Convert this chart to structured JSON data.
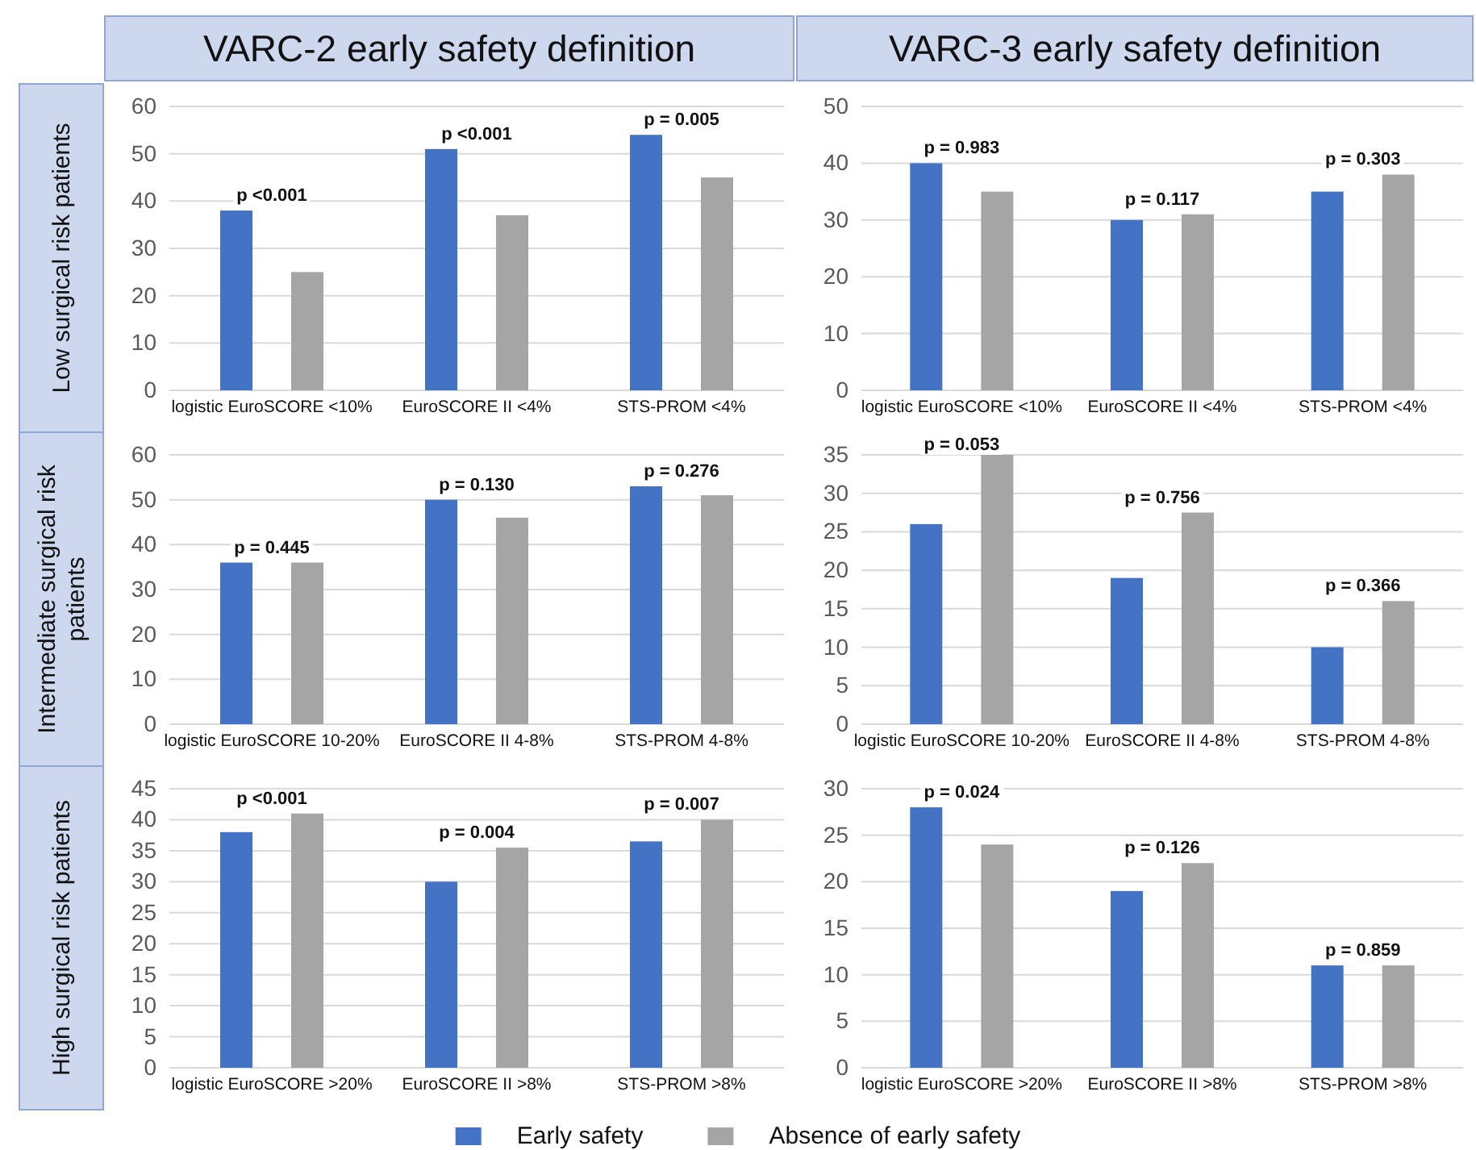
{
  "chart_data": [
    {
      "type": "bar",
      "title": "VARC-2 early safety definition",
      "ylabel": "Low surgical risk patients",
      "categories": [
        "logistic EuroSCORE <10%",
        "EuroSCORE II <4%",
        "STS-PROM <4%"
      ],
      "series": [
        {
          "color": "#4472c4",
          "values": [
            38,
            51,
            54
          ]
        },
        {
          "color": "#a5a5a5",
          "values": [
            25,
            37,
            45
          ]
        }
      ],
      "ylim": [
        0,
        60
      ],
      "yticks": [
        0,
        10,
        20,
        30,
        40,
        50,
        60
      ],
      "grid": "y",
      "legend": false,
      "annotations": [
        "p <0.001",
        "p <0.001",
        "p = 0.005"
      ]
    },
    {
      "type": "bar",
      "title": "VARC-3 early safety definition",
      "categories": [
        "logistic EuroSCORE <10%",
        "EuroSCORE II <4%",
        "STS-PROM <4%"
      ],
      "series": [
        {
          "color": "#4472c4",
          "values": [
            40,
            30,
            35
          ]
        },
        {
          "color": "#a5a5a5",
          "values": [
            35,
            31,
            38
          ]
        }
      ],
      "ylim": [
        0,
        50
      ],
      "yticks": [
        0,
        10,
        20,
        30,
        40,
        50
      ],
      "grid": "y",
      "legend": false,
      "annotations": [
        "p = 0.983",
        "p = 0.117",
        "p = 0.303"
      ]
    },
    {
      "type": "bar",
      "ylabel": "Intermediate surgical risk patients",
      "categories": [
        "logistic EuroSCORE 10-20%",
        "EuroSCORE II 4-8%",
        "STS-PROM 4-8%"
      ],
      "series": [
        {
          "color": "#4472c4",
          "values": [
            36,
            50,
            53
          ]
        },
        {
          "color": "#a5a5a5",
          "values": [
            36,
            46,
            51
          ]
        }
      ],
      "ylim": [
        0,
        60
      ],
      "yticks": [
        0,
        10,
        20,
        30,
        40,
        50,
        60
      ],
      "grid": "y",
      "legend": false,
      "annotations": [
        "p = 0.445",
        "p = 0.130",
        "p = 0.276"
      ]
    },
    {
      "type": "bar",
      "categories": [
        "logistic EuroSCORE 10-20%",
        "EuroSCORE II 4-8%",
        "STS-PROM 4-8%"
      ],
      "series": [
        {
          "color": "#4472c4",
          "values": [
            26,
            19,
            10
          ]
        },
        {
          "color": "#a5a5a5",
          "values": [
            35,
            27.5,
            16
          ]
        }
      ],
      "ylim": [
        0,
        35
      ],
      "yticks": [
        0,
        5,
        10,
        15,
        20,
        25,
        30,
        35
      ],
      "grid": "y",
      "legend": false,
      "annotations": [
        "p = 0.053",
        "p = 0.756",
        "p = 0.366"
      ]
    },
    {
      "type": "bar",
      "ylabel": "High surgical risk patients",
      "categories": [
        "logistic EuroSCORE >20%",
        "EuroSCORE II >8%",
        "STS-PROM >8%"
      ],
      "series": [
        {
          "name": "Early safety",
          "color": "#4472c4",
          "values": [
            38,
            30,
            36.5
          ]
        },
        {
          "name": "Absence of early safety",
          "color": "#a5a5a5",
          "values": [
            41,
            35.5,
            40
          ]
        }
      ],
      "ylim": [
        0,
        45
      ],
      "yticks": [
        0,
        5,
        10,
        15,
        20,
        25,
        30,
        35,
        40,
        45
      ],
      "grid": "y",
      "legend": "bottom",
      "annotations": [
        "p <0.001",
        "p = 0.004",
        "p = 0.007"
      ]
    },
    {
      "type": "bar",
      "categories": [
        "logistic EuroSCORE >20%",
        "EuroSCORE II >8%",
        "STS-PROM >8%"
      ],
      "series": [
        {
          "color": "#4472c4",
          "values": [
            28,
            19,
            11
          ]
        },
        {
          "color": "#a5a5a5",
          "values": [
            24,
            22,
            11
          ]
        }
      ],
      "ylim": [
        0,
        30
      ],
      "yticks": [
        0,
        5,
        10,
        15,
        20,
        25,
        30
      ],
      "grid": "y",
      "legend": false,
      "annotations": [
        "p = 0.024",
        "p = 0.126",
        "p = 0.859"
      ]
    }
  ]
}
